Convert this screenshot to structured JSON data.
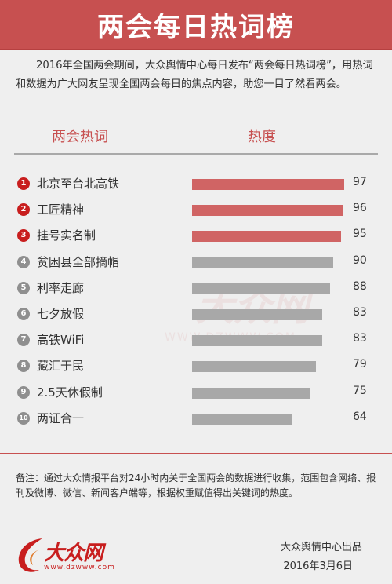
{
  "header": {
    "title": "两会每日热词榜"
  },
  "intro": "2016年全国两会期间，大众舆情中心每日发布“两会每日热词榜”，用热词和数据为广大网友呈现全国两会每日的焦点内容，助您一目了然看两会。",
  "columns": {
    "term": "两会热词",
    "heat": "热度"
  },
  "colors": {
    "top3": "#d06464",
    "rest": "#a8a8a8",
    "accent": "#c75050"
  },
  "chart_data": {
    "type": "bar",
    "orientation": "horizontal",
    "categories": [
      "北京至台北高铁",
      "工匠精神",
      "挂号实名制",
      "贫困县全部摘帽",
      "利率走廊",
      "七夕放假",
      "高铁WiFi",
      "藏汇于民",
      "2.5天休假制",
      "两证合一"
    ],
    "values": [
      97,
      96,
      95,
      90,
      88,
      83,
      83,
      79,
      75,
      64
    ],
    "ranks": [
      "1",
      "2",
      "3",
      "4",
      "5",
      "6",
      "7",
      "8",
      "9",
      "10"
    ],
    "xlim": [
      0,
      97
    ],
    "grid": false,
    "legend": "none"
  },
  "watermark": {
    "text": "大众网",
    "url": "WWW.DZWWW.COM"
  },
  "note": "备注：通过大众情报平台对24小时内关于全国两会的数据进行收集，范围包含网络、报刊及微博、微信、新闻客户端等，根据权重赋值得出关键词的热度。",
  "logo": {
    "text": "大众网",
    "url": "www.dzwww.com"
  },
  "footer": {
    "publisher": "大众舆情中心出品",
    "date": "2016年3月6日"
  }
}
